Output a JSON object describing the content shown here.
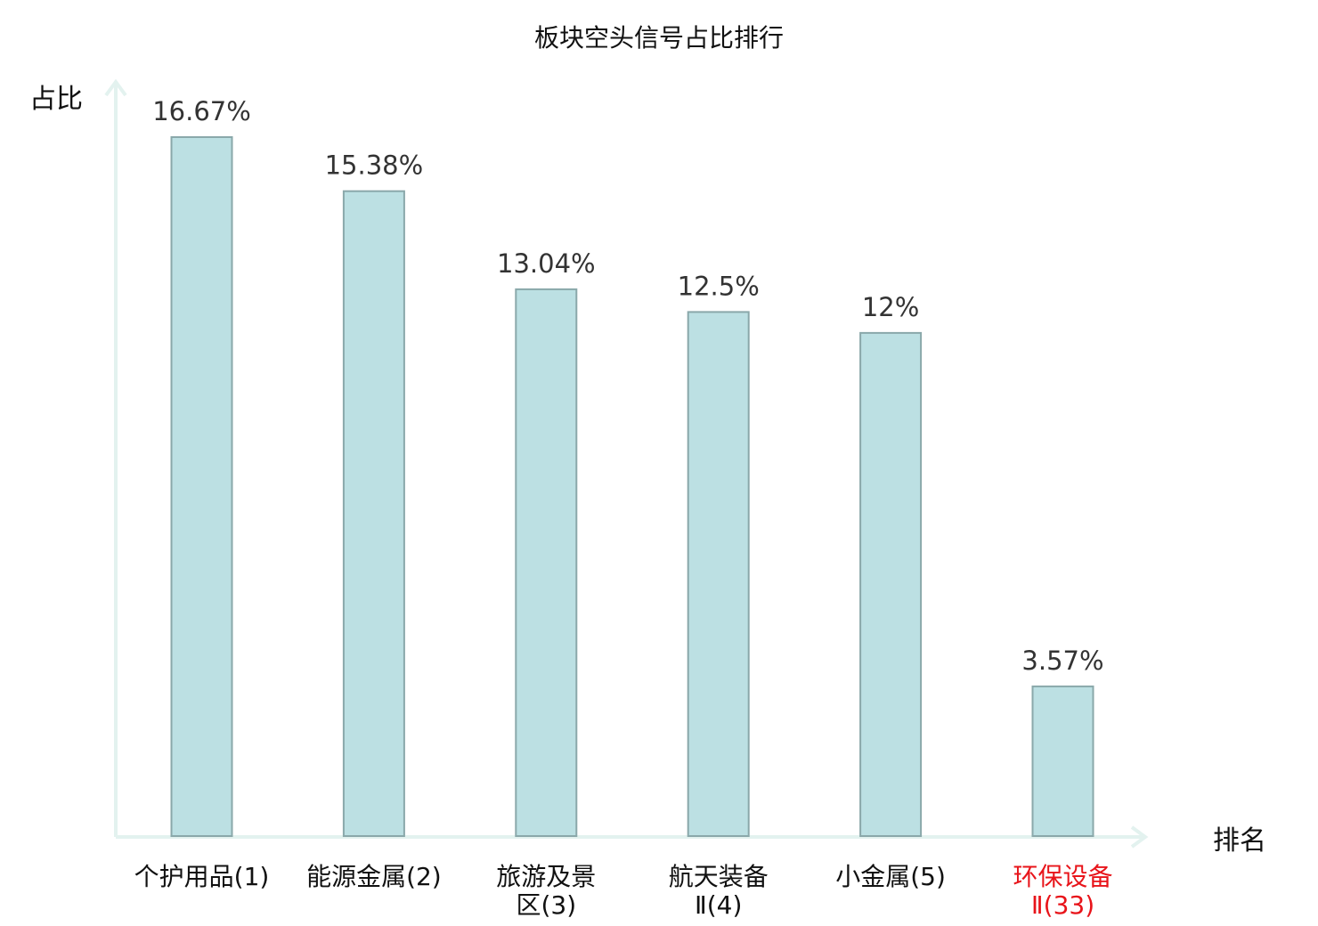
{
  "chart_data": {
    "type": "bar",
    "title": "板块空头信号占比排行",
    "ylabel": "占比",
    "xlabel": "排名",
    "categories": [
      [
        "个护用品(1)"
      ],
      [
        "能源金属(2)"
      ],
      [
        "旅游及景",
        "区(3)"
      ],
      [
        "航天装备",
        "Ⅱ(4)"
      ],
      [
        "小金属(5)"
      ],
      [
        "环保设备",
        "Ⅱ(33)"
      ]
    ],
    "values": [
      16.67,
      15.38,
      13.04,
      12.5,
      12,
      3.57
    ],
    "value_labels": [
      "16.67%",
      "15.38%",
      "13.04%",
      "12.5%",
      "12%",
      "3.57%"
    ],
    "highlight_index": 5,
    "ylim": [
      0,
      16.67
    ],
    "grid": false,
    "colors": {
      "bar_fill": "#bce0e3",
      "bar_stroke": "#8aa8aa",
      "axis": "#e3f2ef",
      "highlight_text": "#e8141a",
      "text": "#111111"
    }
  }
}
